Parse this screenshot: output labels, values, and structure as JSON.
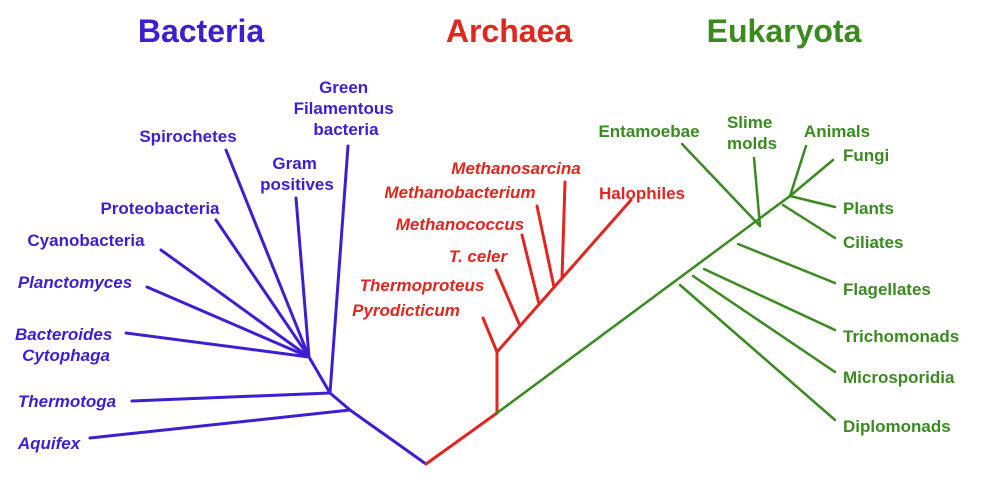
{
  "colors": {
    "bacteria": "#3c1fd1",
    "archaea": "#e0261f",
    "eukaryota": "#3a8a20"
  },
  "domains": {
    "bacteria": "Bacteria",
    "archaea": "Archaea",
    "eukaryota": "Eukaryota"
  },
  "bacteria": {
    "green_filamentous": [
      "Green",
      "Filamentous",
      "bacteria"
    ],
    "spirochetes": "Spirochetes",
    "gram_positives": [
      "Gram",
      "positives"
    ],
    "proteobacteria": "Proteobacteria",
    "cyanobacteria": "Cyanobacteria",
    "planctomyces": "Planctomyces",
    "bacteroides_cytophaga": [
      "Bacteroides",
      "Cytophaga"
    ],
    "thermotoga": "Thermotoga",
    "aquifex": "Aquifex"
  },
  "archaea": {
    "methanosarcina": "Methanosarcina",
    "methanobacterium": "Methanobacterium",
    "halophiles": "Halophiles",
    "methanococcus": "Methanococcus",
    "t_celer": "T. celer",
    "thermoproteus": "Thermoproteus",
    "pyrodicticum": "Pyrodicticum"
  },
  "eukaryota": {
    "entamoebae": "Entamoebae",
    "slime_molds": [
      "Slime",
      "molds"
    ],
    "animals": "Animals",
    "fungi": "Fungi",
    "plants": "Plants",
    "ciliates": "Ciliates",
    "flagellates": "Flagellates",
    "trichomonads": "Trichomonads",
    "microsporidia": "Microsporidia",
    "diplomonads": "Diplomonads"
  }
}
